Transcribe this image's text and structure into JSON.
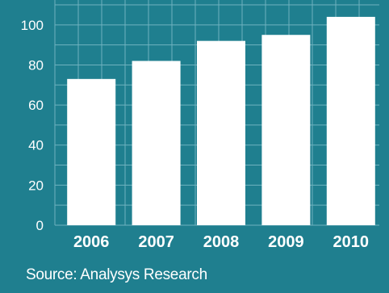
{
  "colors": {
    "background": "#1f7f8f",
    "grid": "#6fb2bf",
    "bar": "#ffffff",
    "text": "#ffffff"
  },
  "source_text": "Source: Analysys Research",
  "chart_data": {
    "type": "bar",
    "categories": [
      "2006",
      "2007",
      "2008",
      "2009",
      "2010"
    ],
    "values": [
      73,
      82,
      92,
      95,
      104
    ],
    "ylim": [
      0,
      110
    ],
    "yticks": [
      0,
      20,
      40,
      60,
      80,
      100
    ],
    "grid": true,
    "legend": "none",
    "title": "",
    "xlabel": "",
    "ylabel": ""
  }
}
